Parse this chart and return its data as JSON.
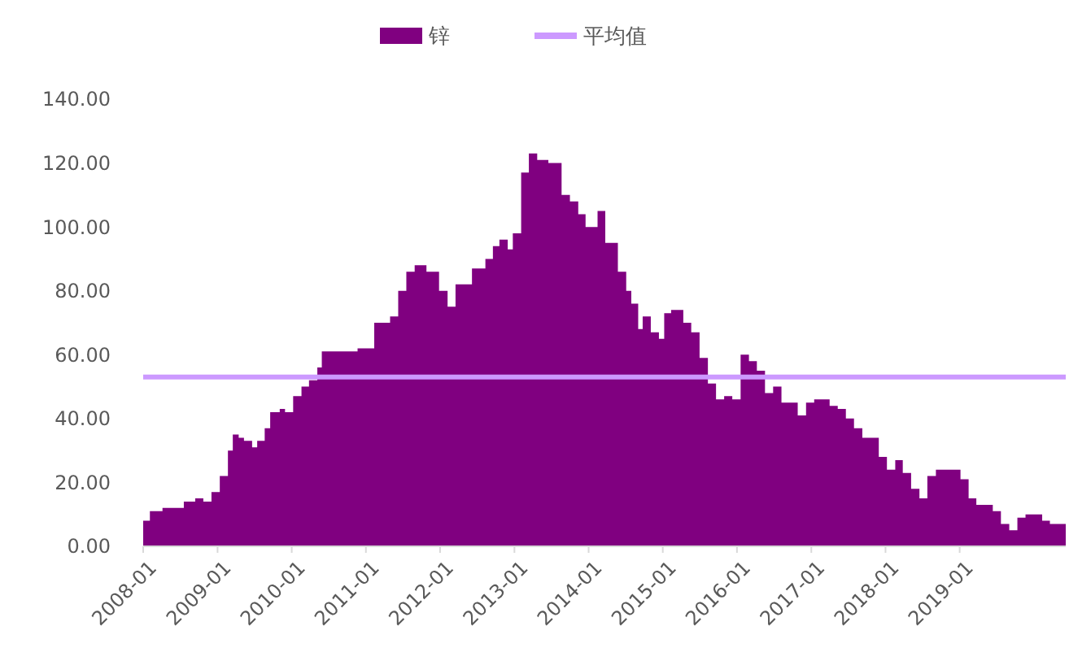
{
  "chart_data": {
    "type": "area",
    "x": [
      "2008-01-01",
      "2008-02-03",
      "2008-04-05",
      "2008-06-09",
      "2008-07-19",
      "2008-09-13",
      "2008-10-23",
      "2008-12-02",
      "2009-01-12",
      "2009-02-21",
      "2009-03-17",
      "2009-04-15",
      "2009-05-11",
      "2009-06-20",
      "2009-07-15",
      "2009-08-21",
      "2009-09-17",
      "2009-11-03",
      "2009-11-29",
      "2010-01-08",
      "2010-02-18",
      "2010-03-27",
      "2010-05-07",
      "2010-05-29",
      "2010-07-26",
      "2010-10-15",
      "2010-11-21",
      "2011-02-11",
      "2011-04-30",
      "2011-06-09",
      "2011-07-19",
      "2011-08-29",
      "2011-10-26",
      "2011-12-27",
      "2012-02-07",
      "2012-03-17",
      "2012-06-06",
      "2012-08-11",
      "2012-09-17",
      "2012-10-19",
      "2012-11-29",
      "2012-12-24",
      "2013-02-03",
      "2013-03-13",
      "2013-04-23",
      "2013-06-17",
      "2013-08-21",
      "2013-10-01",
      "2013-11-11",
      "2013-12-17",
      "2014-02-14",
      "2014-03-24",
      "2014-05-25",
      "2014-07-05",
      "2014-07-30",
      "2014-09-02",
      "2014-09-24",
      "2014-11-03",
      "2014-12-13",
      "2015-01-08",
      "2015-02-11",
      "2015-04-12",
      "2015-05-21",
      "2015-07-01",
      "2015-08-11",
      "2015-09-20",
      "2015-10-30",
      "2015-12-09",
      "2016-01-19",
      "2016-02-29",
      "2016-04-08",
      "2016-05-18",
      "2016-06-27",
      "2016-08-07",
      "2016-10-26",
      "2016-12-06",
      "2017-01-15",
      "2017-04-01",
      "2017-05-11",
      "2017-06-20",
      "2017-07-30",
      "2017-09-09",
      "2017-11-29",
      "2018-01-08",
      "2018-02-18",
      "2018-03-27",
      "2018-05-07",
      "2018-06-17",
      "2018-07-26",
      "2018-09-06",
      "2018-11-25",
      "2019-01-05",
      "2019-02-14",
      "2019-03-24",
      "2019-06-13",
      "2019-07-23",
      "2019-09-02",
      "2019-10-12",
      "2019-11-21",
      "2020-02-11",
      "2020-03-20",
      "2020-06-06"
    ],
    "series": [
      {
        "name": "锌",
        "color": "#800080",
        "values": [
          8,
          11,
          12,
          12,
          14,
          15,
          14,
          17,
          22,
          30,
          35,
          34,
          33,
          31,
          33,
          37,
          42,
          43,
          42,
          47,
          50,
          52,
          56,
          61,
          61,
          61,
          62,
          70,
          72,
          80,
          86,
          88,
          86,
          80,
          75,
          82,
          87,
          90,
          94,
          96,
          93,
          98,
          117,
          123,
          121,
          120,
          110,
          108,
          104,
          100,
          105,
          95,
          86,
          80,
          76,
          68,
          72,
          67,
          65,
          73,
          74,
          70,
          67,
          59,
          51,
          46,
          47,
          46,
          60,
          58,
          55,
          48,
          50,
          45,
          41,
          45,
          46,
          44,
          43,
          40,
          37,
          34,
          28,
          24,
          27,
          23,
          18,
          15,
          22,
          24,
          24,
          21,
          15,
          13,
          11,
          7,
          5,
          9,
          10,
          8,
          7,
          6
        ]
      }
    ],
    "ref_lines": [
      {
        "axis": "y",
        "value": 53,
        "label": "平均值",
        "color": "#cc99ff"
      }
    ],
    "xlim": [
      "2008-01-01",
      "2020-06-06"
    ],
    "xticks": [
      "2008-01",
      "2009-01",
      "2010-01",
      "2011-01",
      "2012-01",
      "2013-01",
      "2014-01",
      "2015-01",
      "2016-01",
      "2017-01",
      "2018-01",
      "2019-01"
    ],
    "ylim": [
      0,
      140
    ],
    "yticks": [
      {
        "value": 0,
        "label": "0.00"
      },
      {
        "value": 20,
        "label": "20.00"
      },
      {
        "value": 40,
        "label": "40.00"
      },
      {
        "value": 60,
        "label": "60.00"
      },
      {
        "value": 80,
        "label": "80.00"
      },
      {
        "value": 100,
        "label": "100.00"
      },
      {
        "value": 120,
        "label": "120.00"
      },
      {
        "value": 140,
        "label": "140.00"
      }
    ],
    "grid": false,
    "legend": "top"
  }
}
